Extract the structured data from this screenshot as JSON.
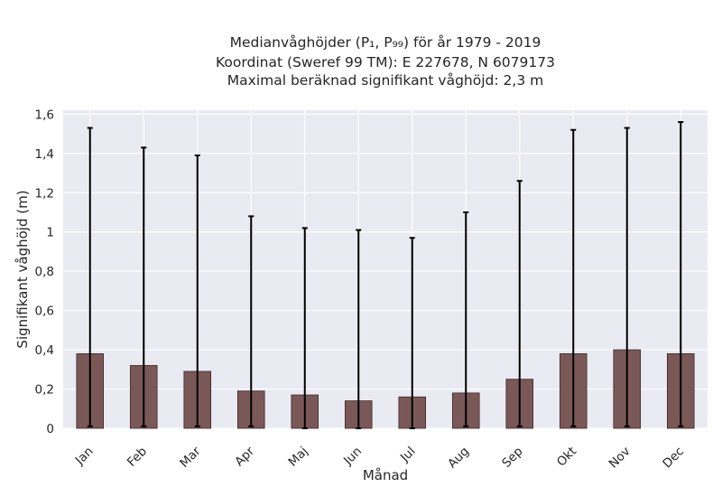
{
  "chart_data": {
    "type": "bar",
    "title_lines": [
      "Medianvåghöjder (P₁, P₉₉) för år 1979 - 2019",
      "Koordinat (Sweref 99 TM): E 227678, N 6079173",
      "Maximal beräknad signifikant våghöjd: 2,3 m"
    ],
    "xlabel": "Månad",
    "ylabel": "Signifikant våghöjd (m)",
    "categories": [
      "Jan",
      "Feb",
      "Mar",
      "Apr",
      "Maj",
      "Jun",
      "Jul",
      "Aug",
      "Sep",
      "Okt",
      "Nov",
      "Dec"
    ],
    "values": [
      0.38,
      0.32,
      0.29,
      0.19,
      0.17,
      0.14,
      0.16,
      0.18,
      0.25,
      0.38,
      0.4,
      0.38
    ],
    "error_low": [
      0.01,
      0.01,
      0.01,
      0.01,
      0.0,
      0.0,
      0.0,
      0.01,
      0.01,
      0.01,
      0.01,
      0.01
    ],
    "error_high": [
      1.53,
      1.43,
      1.39,
      1.08,
      1.02,
      1.01,
      0.97,
      1.1,
      1.26,
      1.52,
      1.53,
      1.56
    ],
    "ylim": [
      0,
      1.62
    ],
    "yticks": [
      0,
      0.2,
      0.4,
      0.6,
      0.8,
      1.0,
      1.2,
      1.4,
      1.6
    ],
    "ytick_labels": [
      "0",
      "0,2",
      "0,4",
      "0,6",
      "0,8",
      "1",
      "1,2",
      "1,4",
      "1,6"
    ],
    "grid": true,
    "colors": {
      "bar": "#7b5858",
      "background": "#eaeaf2",
      "error_bar": "#000000"
    }
  }
}
